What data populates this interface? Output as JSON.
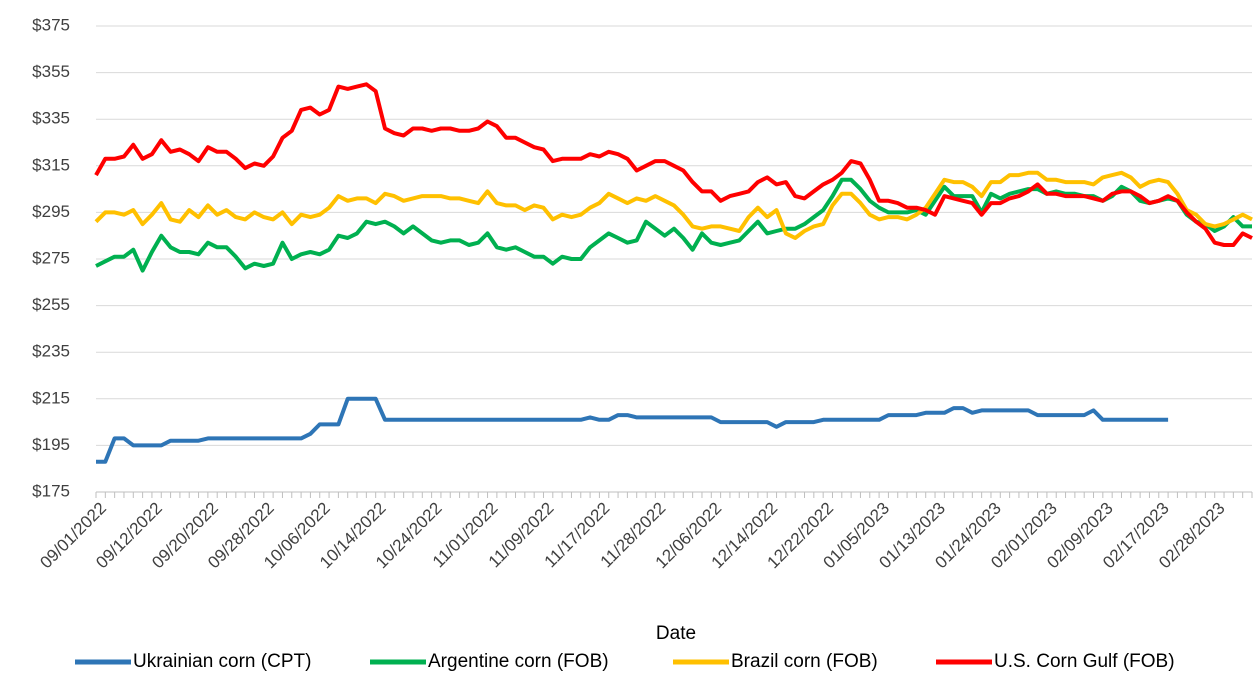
{
  "chart_data": {
    "type": "line",
    "x_label": "Date",
    "categories": [
      "09/01/2022",
      null,
      null,
      null,
      null,
      null,
      "09/12/2022",
      null,
      null,
      null,
      null,
      null,
      "09/20/2022",
      null,
      null,
      null,
      null,
      null,
      "09/28/2022",
      null,
      null,
      null,
      null,
      null,
      "10/06/2022",
      null,
      null,
      null,
      null,
      null,
      "10/14/2022",
      null,
      null,
      null,
      null,
      null,
      "10/24/2022",
      null,
      null,
      null,
      null,
      null,
      "11/01/2022",
      null,
      null,
      null,
      null,
      null,
      "11/09/2022",
      null,
      null,
      null,
      null,
      null,
      "11/17/2022",
      null,
      null,
      null,
      null,
      null,
      "11/28/2022",
      null,
      null,
      null,
      null,
      null,
      "12/06/2022",
      null,
      null,
      null,
      null,
      null,
      "12/14/2022",
      null,
      null,
      null,
      null,
      null,
      "12/22/2022",
      null,
      null,
      null,
      null,
      null,
      "01/05/2023",
      null,
      null,
      null,
      null,
      null,
      "01/13/2023",
      null,
      null,
      null,
      null,
      null,
      "01/24/2023",
      null,
      null,
      null,
      null,
      null,
      "02/01/2023",
      null,
      null,
      null,
      null,
      null,
      "02/09/2023",
      null,
      null,
      null,
      null,
      null,
      "02/17/2023",
      null,
      null,
      null,
      null,
      null,
      "02/28/2023",
      null,
      null,
      null,
      null
    ],
    "series": [
      {
        "name": "Ukrainian corn (CPT)",
        "color": "#2e75b6",
        "values": [
          188,
          188,
          198,
          198,
          195,
          195,
          195,
          195,
          197,
          197,
          197,
          197,
          198,
          198,
          198,
          198,
          198,
          198,
          198,
          198,
          198,
          198,
          198,
          200,
          204,
          204,
          204,
          215,
          215,
          215,
          215,
          206,
          206,
          206,
          206,
          206,
          206,
          206,
          206,
          206,
          206,
          206,
          206,
          206,
          206,
          206,
          206,
          206,
          206,
          206,
          206,
          206,
          206,
          207,
          206,
          206,
          208,
          208,
          207,
          207,
          207,
          207,
          207,
          207,
          207,
          207,
          207,
          205,
          205,
          205,
          205,
          205,
          205,
          203,
          205,
          205,
          205,
          205,
          206,
          206,
          206,
          206,
          206,
          206,
          206,
          208,
          208,
          208,
          208,
          209,
          209,
          209,
          211,
          211,
          209,
          210,
          210,
          210,
          210,
          210,
          210,
          208,
          208,
          208,
          208,
          208,
          208,
          210,
          206,
          206,
          206,
          206,
          206,
          206,
          206,
          206,
          null,
          null,
          null,
          null,
          null,
          null,
          null,
          null,
          null
        ]
      },
      {
        "name": "Argentine corn (FOB)",
        "color": "#00b050",
        "values": [
          272,
          274,
          276,
          276,
          279,
          270,
          278,
          285,
          280,
          278,
          278,
          277,
          282,
          280,
          280,
          276,
          271,
          273,
          272,
          273,
          282,
          275,
          277,
          278,
          277,
          279,
          285,
          284,
          286,
          291,
          290,
          291,
          289,
          286,
          289,
          286,
          283,
          282,
          283,
          283,
          281,
          282,
          286,
          280,
          279,
          280,
          278,
          276,
          276,
          273,
          276,
          275,
          275,
          280,
          283,
          286,
          284,
          282,
          283,
          291,
          288,
          285,
          288,
          284,
          279,
          286,
          282,
          281,
          282,
          283,
          287,
          291,
          286,
          287,
          288,
          288,
          290,
          293,
          296,
          302,
          309,
          309,
          305,
          300,
          297,
          295,
          295,
          295,
          296,
          294,
          300,
          306,
          302,
          302,
          302,
          295,
          303,
          301,
          303,
          304,
          305,
          305,
          303,
          304,
          303,
          303,
          302,
          302,
          300,
          302,
          306,
          304,
          300,
          299,
          300,
          301,
          300,
          294,
          291,
          290,
          287,
          289,
          293,
          289,
          289
        ]
      },
      {
        "name": "Brazil corn (FOB)",
        "color": "#ffc000",
        "values": [
          291,
          295,
          295,
          294,
          296,
          290,
          294,
          299,
          292,
          291,
          296,
          293,
          298,
          294,
          296,
          293,
          292,
          295,
          293,
          292,
          295,
          290,
          294,
          293,
          294,
          297,
          302,
          300,
          301,
          301,
          299,
          303,
          302,
          300,
          301,
          302,
          302,
          302,
          301,
          301,
          300,
          299,
          304,
          299,
          298,
          298,
          296,
          298,
          297,
          292,
          294,
          293,
          294,
          297,
          299,
          303,
          301,
          299,
          301,
          300,
          302,
          300,
          298,
          294,
          289,
          288,
          289,
          289,
          288,
          287,
          293,
          297,
          293,
          296,
          286,
          284,
          287,
          289,
          290,
          298,
          303,
          303,
          299,
          294,
          292,
          293,
          293,
          292,
          294,
          297,
          303,
          309,
          308,
          308,
          306,
          302,
          308,
          308,
          311,
          311,
          312,
          312,
          309,
          309,
          308,
          308,
          308,
          307,
          310,
          311,
          312,
          310,
          306,
          308,
          309,
          308,
          303,
          296,
          294,
          290,
          289,
          290,
          292,
          294,
          292
        ]
      },
      {
        "name": "U.S. Corn Gulf (FOB)",
        "color": "#ff0000",
        "values": [
          311,
          318,
          318,
          319,
          324,
          318,
          320,
          326,
          321,
          322,
          320,
          317,
          323,
          321,
          321,
          318,
          314,
          316,
          315,
          319,
          327,
          330,
          339,
          340,
          337,
          339,
          349,
          348,
          349,
          350,
          347,
          331,
          329,
          328,
          331,
          331,
          330,
          331,
          331,
          330,
          330,
          331,
          334,
          332,
          327,
          327,
          325,
          323,
          322,
          317,
          318,
          318,
          318,
          320,
          319,
          321,
          320,
          318,
          313,
          315,
          317,
          317,
          315,
          313,
          308,
          304,
          304,
          300,
          302,
          303,
          304,
          308,
          310,
          307,
          308,
          302,
          301,
          304,
          307,
          309,
          312,
          317,
          316,
          309,
          300,
          300,
          299,
          297,
          297,
          296,
          294,
          302,
          301,
          300,
          299,
          294,
          299,
          299,
          301,
          302,
          304,
          307,
          303,
          303,
          302,
          302,
          302,
          301,
          300,
          303,
          304,
          304,
          302,
          299,
          300,
          302,
          300,
          295,
          291,
          288,
          282,
          281,
          281,
          286,
          284
        ]
      }
    ],
    "ylim": [
      175,
      375
    ],
    "yticks": [
      {
        "value": 175,
        "label": "$175"
      },
      {
        "value": 195,
        "label": "$195"
      },
      {
        "value": 215,
        "label": "$215"
      },
      {
        "value": 235,
        "label": "$235"
      },
      {
        "value": 255,
        "label": "$255"
      },
      {
        "value": 275,
        "label": "$275"
      },
      {
        "value": 295,
        "label": "$295"
      },
      {
        "value": 315,
        "label": "$315"
      },
      {
        "value": 335,
        "label": "$335"
      },
      {
        "value": 355,
        "label": "$355"
      },
      {
        "value": 375,
        "label": "$375"
      }
    ],
    "grid": true,
    "legend": "bottom"
  }
}
